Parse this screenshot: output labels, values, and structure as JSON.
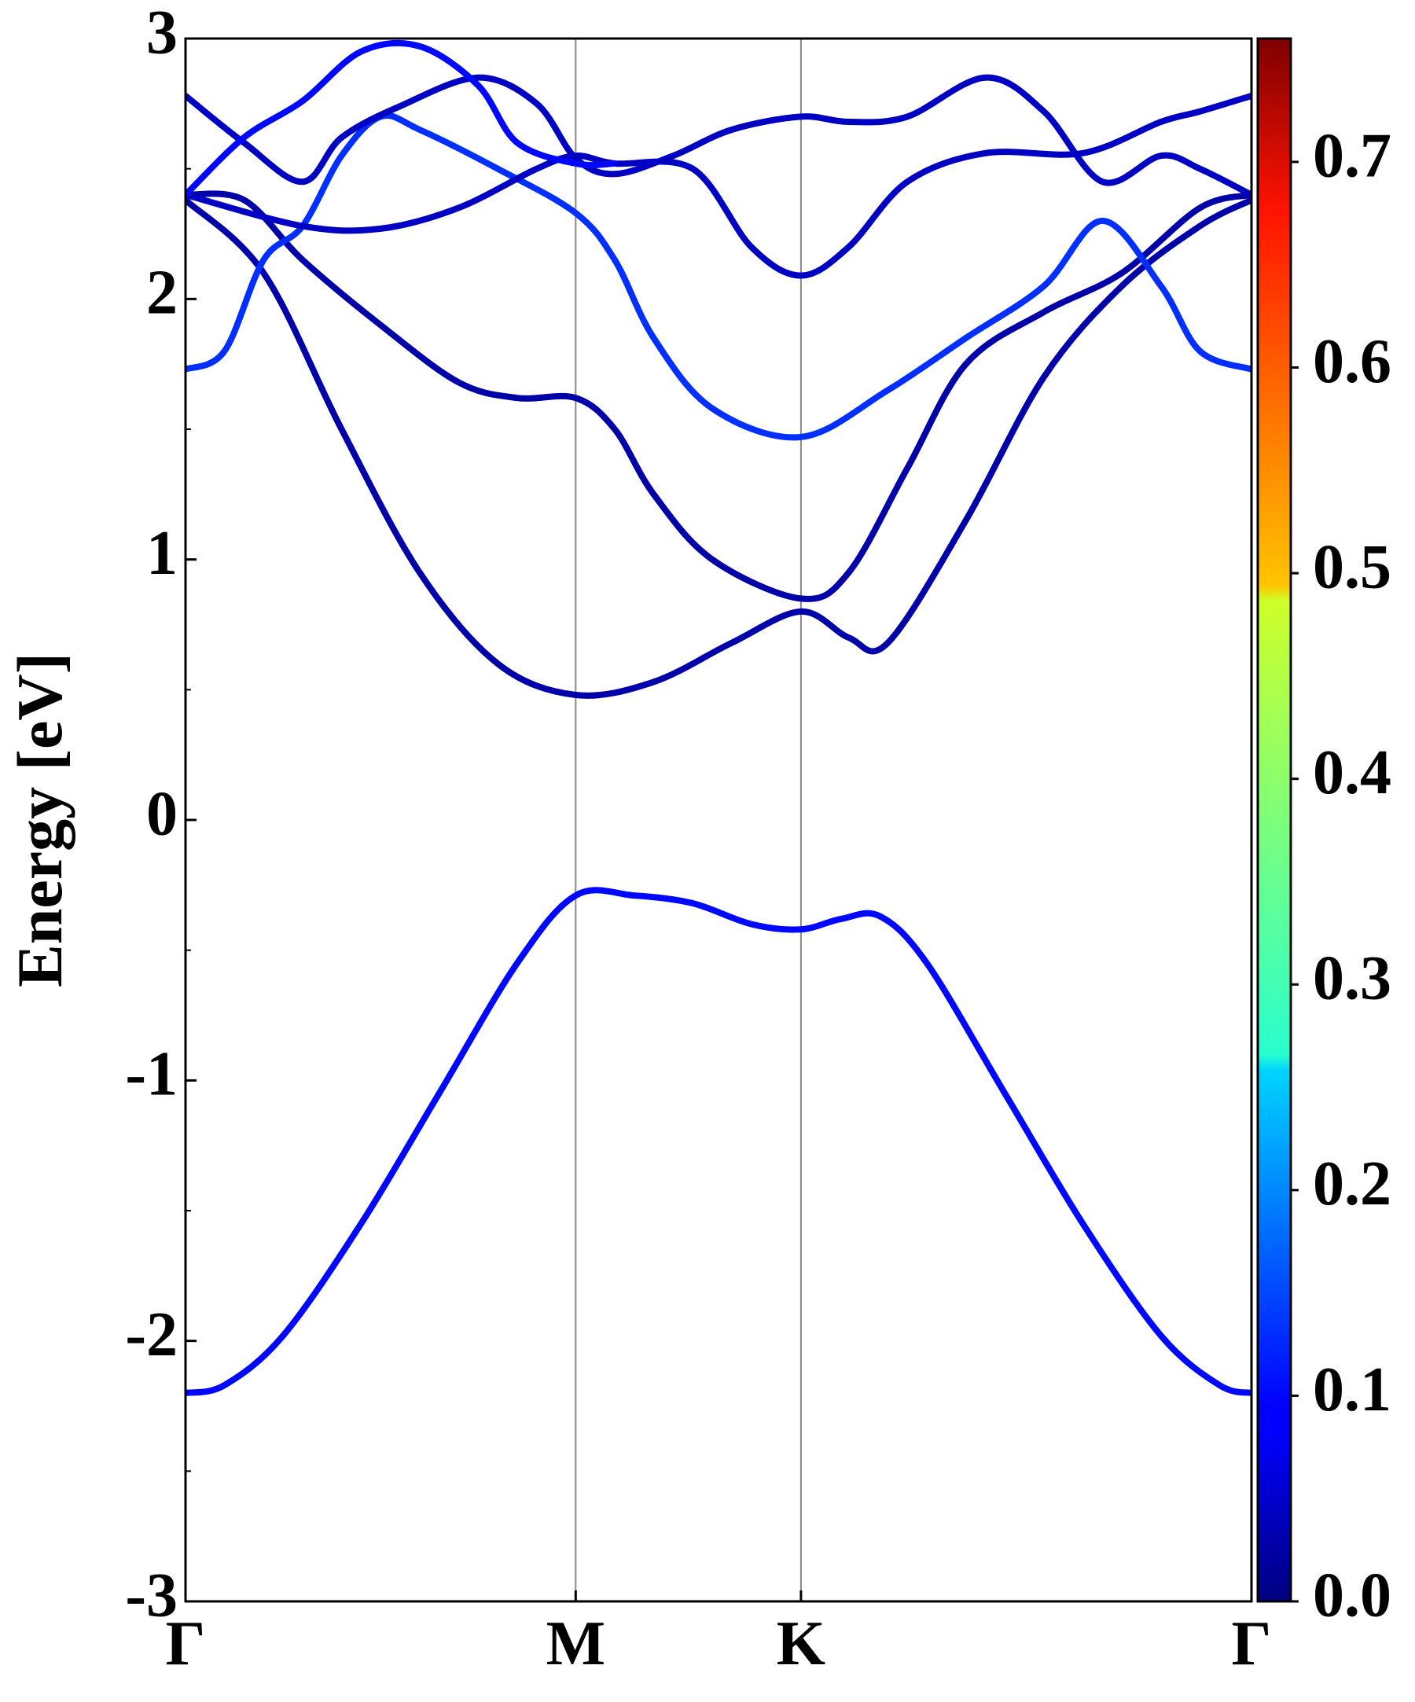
{
  "chart_data": {
    "type": "line",
    "title": "",
    "xlabel": "",
    "ylabel": "Energy [eV]",
    "ylim": [
      -3,
      3
    ],
    "yticks": [
      -3,
      -2,
      -1,
      0,
      1,
      2,
      3
    ],
    "yminor_step": 0.5,
    "high_symmetry_points": [
      {
        "label": "Γ",
        "k": 0.0
      },
      {
        "label": "M",
        "k": 1.0
      },
      {
        "label": "K",
        "k": 1.5774
      },
      {
        "label": "Γ",
        "k": 2.7321
      }
    ],
    "xlim": [
      0.0,
      2.7321
    ],
    "colorbar": {
      "colormap": "jet",
      "range": [
        0.0,
        0.76
      ],
      "ticks": [
        0.0,
        0.1,
        0.2,
        0.3,
        0.4,
        0.5,
        0.6,
        0.7
      ],
      "tick_labels": [
        "0.0",
        "0.1",
        "0.2",
        "0.3",
        "0.4",
        "0.5",
        "0.6",
        "0.7"
      ]
    },
    "series": [
      {
        "weight": 0.1,
        "points": [
          [
            0.0,
            -2.2
          ],
          [
            0.1,
            -2.17
          ],
          [
            0.25,
            -1.98
          ],
          [
            0.45,
            -1.55
          ],
          [
            0.65,
            -1.05
          ],
          [
            0.85,
            -0.55
          ],
          [
            1.0,
            -0.29
          ],
          [
            1.15,
            -0.29
          ],
          [
            1.3,
            -0.32
          ],
          [
            1.45,
            -0.4
          ],
          [
            1.5774,
            -0.42
          ],
          [
            1.68,
            -0.38
          ],
          [
            1.78,
            -0.37
          ],
          [
            1.9,
            -0.55
          ],
          [
            2.1,
            -1.05
          ],
          [
            2.3,
            -1.55
          ],
          [
            2.5,
            -1.98
          ],
          [
            2.65,
            -2.17
          ],
          [
            2.7321,
            -2.2
          ]
        ]
      },
      {
        "weight": 0.03,
        "points": [
          [
            0.0,
            2.38
          ],
          [
            0.2,
            2.1
          ],
          [
            0.4,
            1.5
          ],
          [
            0.6,
            0.95
          ],
          [
            0.8,
            0.6
          ],
          [
            1.0,
            0.48
          ],
          [
            1.2,
            0.53
          ],
          [
            1.4,
            0.68
          ],
          [
            1.5774,
            0.8
          ],
          [
            1.7,
            0.7
          ],
          [
            1.8,
            0.68
          ],
          [
            2.0,
            1.15
          ],
          [
            2.2,
            1.7
          ],
          [
            2.4,
            2.05
          ],
          [
            2.6,
            2.28
          ],
          [
            2.7321,
            2.38
          ]
        ]
      },
      {
        "weight": 0.03,
        "points": [
          [
            0.0,
            2.4
          ],
          [
            0.15,
            2.38
          ],
          [
            0.3,
            2.15
          ],
          [
            0.5,
            1.9
          ],
          [
            0.7,
            1.68
          ],
          [
            0.85,
            1.62
          ],
          [
            1.0,
            1.62
          ],
          [
            1.1,
            1.5
          ],
          [
            1.2,
            1.25
          ],
          [
            1.35,
            1.0
          ],
          [
            1.5774,
            0.85
          ],
          [
            1.7,
            0.95
          ],
          [
            1.85,
            1.35
          ],
          [
            2.0,
            1.75
          ],
          [
            2.2,
            1.95
          ],
          [
            2.4,
            2.1
          ],
          [
            2.6,
            2.35
          ],
          [
            2.7321,
            2.4
          ]
        ]
      },
      {
        "weight": 0.13,
        "points": [
          [
            0.0,
            1.73
          ],
          [
            0.1,
            1.8
          ],
          [
            0.2,
            2.15
          ],
          [
            0.3,
            2.28
          ],
          [
            0.4,
            2.55
          ],
          [
            0.5,
            2.7
          ],
          [
            0.6,
            2.65
          ],
          [
            0.8,
            2.5
          ],
          [
            1.0,
            2.33
          ],
          [
            1.1,
            2.15
          ],
          [
            1.2,
            1.85
          ],
          [
            1.35,
            1.58
          ],
          [
            1.5774,
            1.47
          ],
          [
            1.8,
            1.65
          ],
          [
            2.0,
            1.85
          ],
          [
            2.2,
            2.05
          ],
          [
            2.35,
            2.3
          ],
          [
            2.5,
            2.05
          ],
          [
            2.6,
            1.8
          ],
          [
            2.7321,
            1.73
          ]
        ]
      },
      {
        "weight": 0.05,
        "points": [
          [
            0.0,
            2.4
          ],
          [
            0.3,
            2.28
          ],
          [
            0.5,
            2.27
          ],
          [
            0.7,
            2.35
          ],
          [
            0.9,
            2.5
          ],
          [
            1.0,
            2.55
          ],
          [
            1.1,
            2.52
          ],
          [
            1.3,
            2.5
          ],
          [
            1.45,
            2.2
          ],
          [
            1.5774,
            2.09
          ],
          [
            1.7,
            2.2
          ],
          [
            1.85,
            2.45
          ],
          [
            2.05,
            2.56
          ],
          [
            2.3,
            2.56
          ],
          [
            2.5,
            2.68
          ],
          [
            2.6,
            2.72
          ],
          [
            2.7321,
            2.78
          ]
        ]
      },
      {
        "weight": 0.05,
        "points": [
          [
            0.0,
            2.78
          ],
          [
            0.15,
            2.6
          ],
          [
            0.3,
            2.45
          ],
          [
            0.4,
            2.62
          ],
          [
            0.55,
            2.74
          ],
          [
            0.75,
            2.85
          ],
          [
            0.9,
            2.75
          ],
          [
            1.0,
            2.54
          ],
          [
            1.1,
            2.48
          ],
          [
            1.25,
            2.55
          ],
          [
            1.4,
            2.65
          ],
          [
            1.5774,
            2.7
          ],
          [
            1.7,
            2.68
          ],
          [
            1.85,
            2.7
          ],
          [
            2.05,
            2.85
          ],
          [
            2.2,
            2.72
          ],
          [
            2.35,
            2.45
          ],
          [
            2.5,
            2.55
          ],
          [
            2.6,
            2.5
          ],
          [
            2.7321,
            2.4
          ]
        ]
      },
      {
        "weight": 0.1,
        "points": [
          [
            0.0,
            2.4
          ],
          [
            0.15,
            2.62
          ],
          [
            0.3,
            2.76
          ],
          [
            0.45,
            2.95
          ],
          [
            0.6,
            2.97
          ],
          [
            0.75,
            2.82
          ],
          [
            0.85,
            2.6
          ],
          [
            1.0,
            2.52
          ],
          [
            1.1,
            2.52
          ]
        ]
      }
    ]
  }
}
